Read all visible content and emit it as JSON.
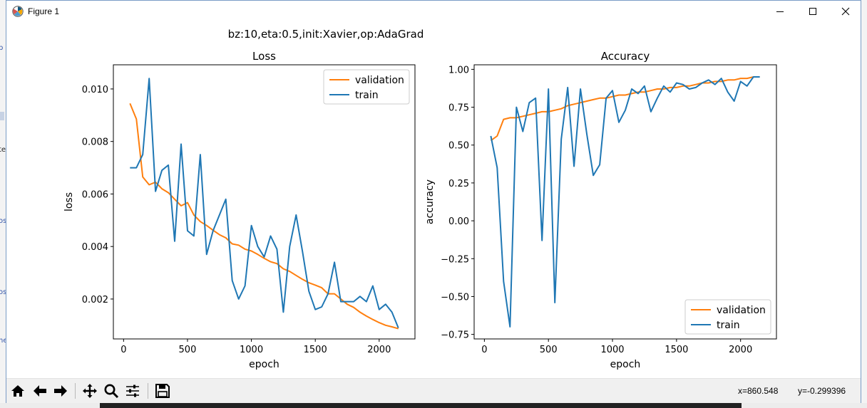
{
  "window": {
    "title": "Figure 1"
  },
  "figure": {
    "suptitle": "bz:10,eta:0.5,init:Xavier,op:AdaGrad"
  },
  "status": {
    "x": "x=860.548",
    "y": "y=-0.299396"
  },
  "toolbar": [
    "home-icon",
    "back-arrow-icon",
    "forward-arrow-icon",
    "pan-icon",
    "zoom-icon",
    "configure-subplots-icon",
    "save-icon"
  ],
  "colors": {
    "validation": "#ff7f0e",
    "train": "#1f77b4"
  },
  "chart_data": [
    {
      "type": "line",
      "title": "Loss",
      "xlabel": "epoch",
      "ylabel": "loss",
      "xlim": [
        -80,
        2280
      ],
      "ylim": [
        0.00048,
        0.01092
      ],
      "xticks": [
        0,
        500,
        1000,
        1500,
        2000
      ],
      "yticks": [
        0.002,
        0.004,
        0.006,
        0.008,
        0.01
      ],
      "ytick_labels": [
        "0.002",
        "0.004",
        "0.006",
        "0.008",
        "0.010"
      ],
      "legend": "upper right",
      "series": [
        {
          "name": "validation",
          "x": [
            50,
            100,
            150,
            200,
            250,
            300,
            350,
            400,
            450,
            500,
            550,
            600,
            650,
            700,
            750,
            800,
            850,
            900,
            950,
            1000,
            1050,
            1100,
            1150,
            1200,
            1250,
            1300,
            1350,
            1400,
            1450,
            1500,
            1550,
            1600,
            1650,
            1700,
            1750,
            1800,
            1850,
            1900,
            1950,
            2000,
            2050,
            2100,
            2150
          ],
          "y": [
            0.00945,
            0.00885,
            0.00665,
            0.00635,
            0.00645,
            0.0062,
            0.00605,
            0.0058,
            0.00555,
            0.00567,
            0.0052,
            0.00495,
            0.0048,
            0.00462,
            0.00445,
            0.00433,
            0.0041,
            0.00405,
            0.0039,
            0.00383,
            0.0037,
            0.00355,
            0.00342,
            0.00335,
            0.00315,
            0.00305,
            0.0029,
            0.00275,
            0.00262,
            0.00253,
            0.00243,
            0.0022,
            0.0022,
            0.002,
            0.0018,
            0.00168,
            0.0015,
            0.00135,
            0.00122,
            0.0011,
            0.001,
            0.00094,
            0.00087
          ]
        },
        {
          "name": "train",
          "x": [
            50,
            100,
            150,
            200,
            250,
            300,
            350,
            400,
            450,
            500,
            550,
            600,
            650,
            700,
            750,
            800,
            850,
            900,
            950,
            1000,
            1050,
            1100,
            1150,
            1200,
            1250,
            1300,
            1350,
            1400,
            1450,
            1500,
            1550,
            1600,
            1650,
            1700,
            1750,
            1800,
            1850,
            1900,
            1950,
            2000,
            2050,
            2100,
            2150
          ],
          "y": [
            0.007,
            0.007,
            0.0075,
            0.0104,
            0.0061,
            0.0069,
            0.0071,
            0.0042,
            0.0079,
            0.0046,
            0.0044,
            0.0075,
            0.0037,
            0.0046,
            0.0052,
            0.0058,
            0.0027,
            0.002,
            0.0025,
            0.0048,
            0.004,
            0.0036,
            0.0044,
            0.0039,
            0.0015,
            0.004,
            0.0052,
            0.0038,
            0.0023,
            0.0016,
            0.0017,
            0.0022,
            0.0034,
            0.0019,
            0.0019,
            0.0019,
            0.0021,
            0.0019,
            0.0025,
            0.0016,
            0.0018,
            0.0015,
            0.0009
          ]
        }
      ]
    },
    {
      "type": "line",
      "title": "Accuracy",
      "xlabel": "epoch",
      "ylabel": "accuracy",
      "xlim": [
        -80,
        2280
      ],
      "ylim": [
        -0.78,
        1.03
      ],
      "xticks": [
        0,
        500,
        1000,
        1500,
        2000
      ],
      "yticks": [
        -0.75,
        -0.5,
        -0.25,
        0.0,
        0.25,
        0.5,
        0.75,
        1.0
      ],
      "ytick_labels": [
        "−0.75",
        "−0.50",
        "−0.25",
        "0.00",
        "0.25",
        "0.50",
        "0.75",
        "1.00"
      ],
      "legend": "lower right",
      "series": [
        {
          "name": "validation",
          "x": [
            50,
            100,
            150,
            200,
            250,
            300,
            350,
            400,
            450,
            500,
            550,
            600,
            650,
            700,
            750,
            800,
            850,
            900,
            950,
            1000,
            1050,
            1100,
            1150,
            1200,
            1250,
            1300,
            1350,
            1400,
            1450,
            1500,
            1550,
            1600,
            1650,
            1700,
            1750,
            1800,
            1850,
            1900,
            1950,
            2000,
            2050,
            2100,
            2150
          ],
          "y": [
            0.53,
            0.56,
            0.67,
            0.68,
            0.68,
            0.69,
            0.7,
            0.71,
            0.72,
            0.72,
            0.73,
            0.74,
            0.76,
            0.77,
            0.78,
            0.79,
            0.8,
            0.81,
            0.81,
            0.82,
            0.83,
            0.83,
            0.84,
            0.85,
            0.85,
            0.86,
            0.87,
            0.87,
            0.88,
            0.88,
            0.89,
            0.89,
            0.9,
            0.91,
            0.91,
            0.92,
            0.92,
            0.93,
            0.93,
            0.94,
            0.94,
            0.95,
            0.95
          ]
        },
        {
          "name": "train",
          "x": [
            50,
            100,
            150,
            200,
            250,
            300,
            350,
            400,
            450,
            500,
            550,
            600,
            650,
            700,
            750,
            800,
            850,
            900,
            950,
            1000,
            1050,
            1100,
            1150,
            1200,
            1250,
            1300,
            1350,
            1400,
            1450,
            1500,
            1550,
            1600,
            1650,
            1700,
            1750,
            1800,
            1850,
            1900,
            1950,
            2000,
            2050,
            2100,
            2150
          ],
          "y": [
            0.56,
            0.35,
            -0.4,
            -0.7,
            0.75,
            0.59,
            0.78,
            0.81,
            -0.13,
            0.87,
            -0.54,
            0.54,
            0.88,
            0.36,
            0.87,
            0.57,
            0.3,
            0.37,
            0.81,
            0.86,
            0.65,
            0.73,
            0.87,
            0.84,
            0.89,
            0.72,
            0.81,
            0.89,
            0.85,
            0.91,
            0.9,
            0.87,
            0.88,
            0.91,
            0.93,
            0.9,
            0.94,
            0.85,
            0.79,
            0.92,
            0.89,
            0.95,
            0.95
          ]
        }
      ]
    }
  ]
}
